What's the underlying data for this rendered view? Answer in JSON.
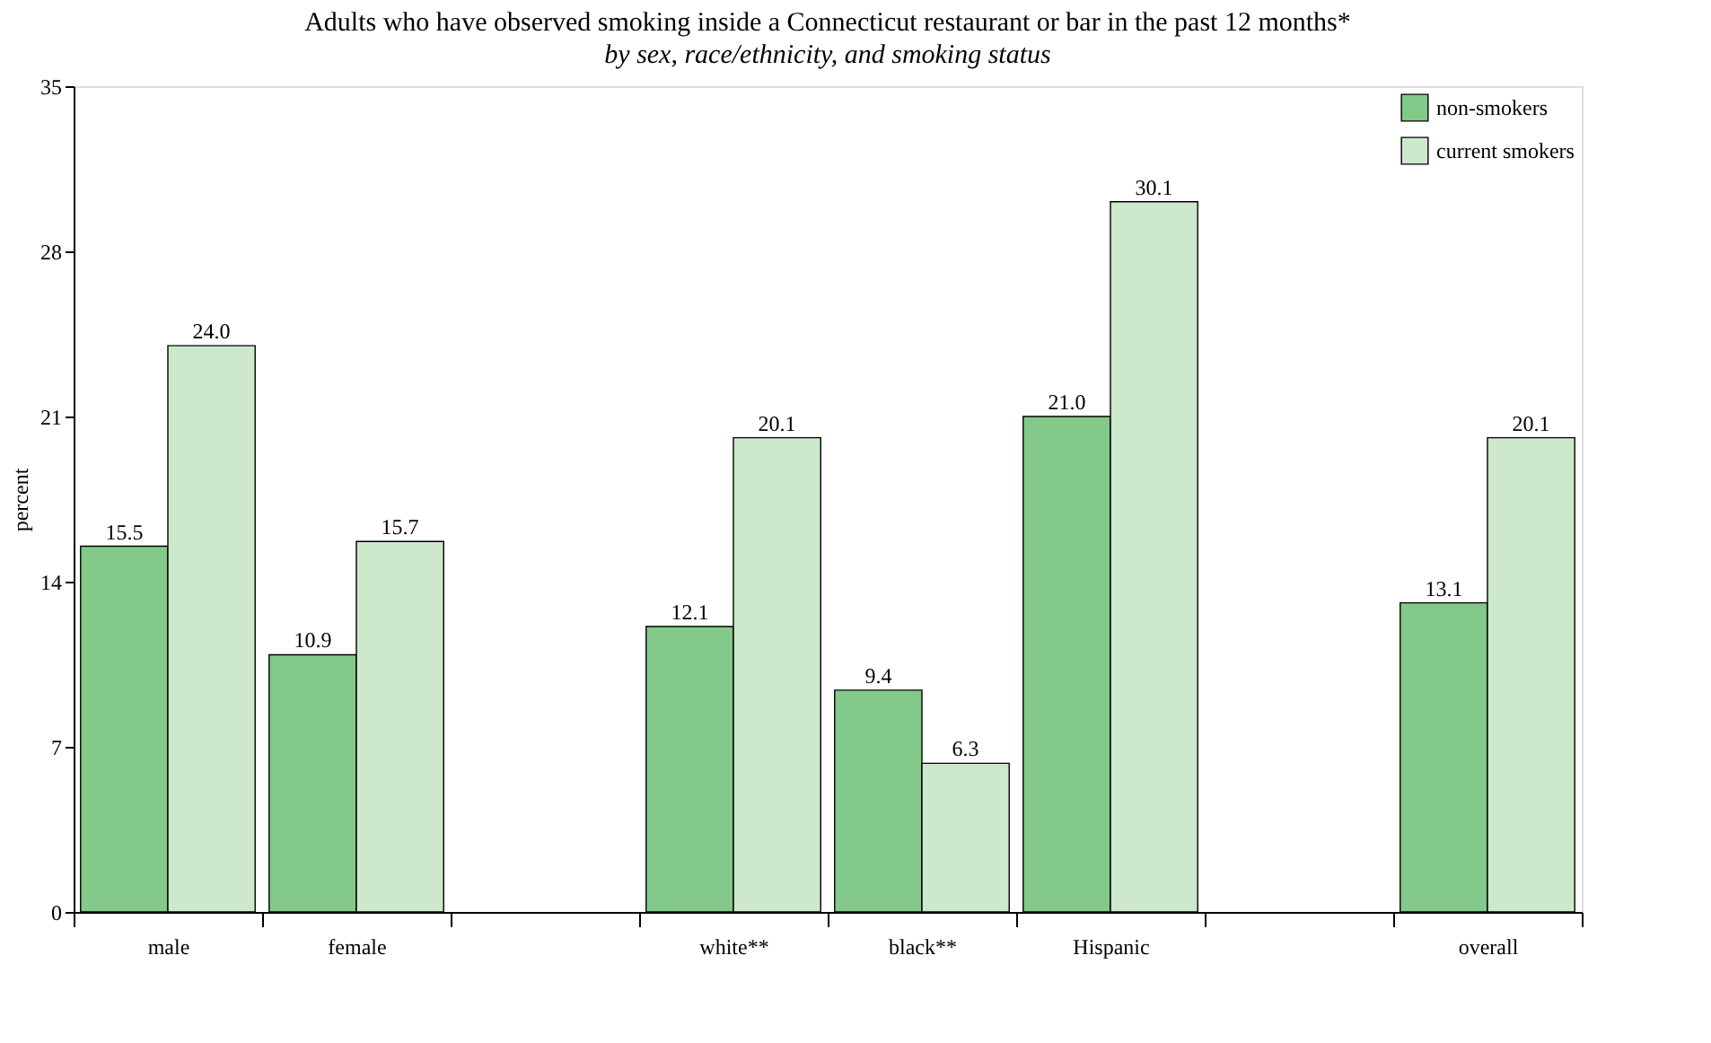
{
  "chart_data": {
    "type": "bar",
    "title": "Adults who have observed smoking inside a Connecticut restaurant or bar in the past 12 months*",
    "subtitle": "by sex, race/ethnicity, and smoking status",
    "ylabel": "percent",
    "categories": [
      "male",
      "female",
      null,
      "white**",
      "black**",
      "Hispanic",
      null,
      "overall"
    ],
    "series": [
      {
        "name": "non-smokers",
        "color": "#82c98a",
        "values": [
          15.5,
          10.9,
          null,
          12.1,
          9.4,
          21.0,
          null,
          13.1
        ],
        "value_labels": [
          "15.5",
          "10.9",
          null,
          "12.1",
          "9.4",
          "21.0",
          null,
          "13.1"
        ]
      },
      {
        "name": "current smokers",
        "color": "#cde8cb",
        "values": [
          24.0,
          15.7,
          null,
          20.1,
          6.3,
          30.1,
          null,
          20.1
        ],
        "value_labels": [
          "24.0",
          "15.7",
          null,
          "20.1",
          "6.3",
          "30.1",
          null,
          "20.1"
        ]
      }
    ],
    "ylim": [
      0,
      35
    ],
    "yticks": [
      0,
      7,
      14,
      21,
      28,
      35
    ],
    "grid": false,
    "legend": "top right"
  }
}
